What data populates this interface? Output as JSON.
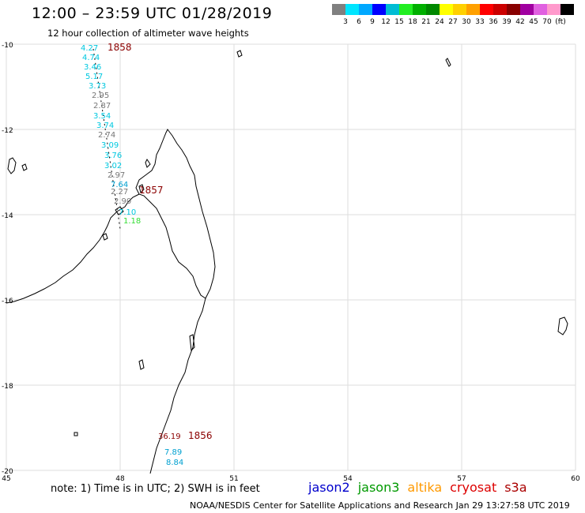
{
  "title": "12:00 – 23:59 UTC 01/28/2019",
  "subtitle": "12 hour collection of altimeter wave heights",
  "color_scale": {
    "colors": [
      "#808080",
      "#00e5ff",
      "#00a8ff",
      "#0000ff",
      "#00bcd4",
      "#22ee22",
      "#00b000",
      "#008800",
      "#ffff00",
      "#ffd000",
      "#ffa000",
      "#ff0000",
      "#cc0000",
      "#880000",
      "#a000a0",
      "#e060e0",
      "#ff99cc",
      "#000000"
    ],
    "labels": [
      "3",
      "6",
      "9",
      "12",
      "15",
      "18",
      "21",
      "24",
      "27",
      "30",
      "33",
      "36",
      "39",
      "42",
      "45",
      "70",
      "(ft)"
    ]
  },
  "axes": {
    "lat_labels": [
      "-10",
      "-12",
      "-14",
      "-16",
      "-18",
      "-20"
    ],
    "lon_labels": [
      "45",
      "48",
      "51",
      "54",
      "57",
      "60"
    ]
  },
  "passes": [
    {
      "time": "1858",
      "color": "#8b0000"
    },
    {
      "time": "1857",
      "color": "#8b0000"
    },
    {
      "time": "1856",
      "color": "#8b0000"
    }
  ],
  "wave_values": [
    {
      "text": "4.27",
      "color": "#00c8e0"
    },
    {
      "text": "4.74",
      "color": "#00c8e0"
    },
    {
      "text": "3.46",
      "color": "#00c8e0"
    },
    {
      "text": "5.17",
      "color": "#00c8e0"
    },
    {
      "text": "3.73",
      "color": "#00c8e0"
    },
    {
      "text": "2.95",
      "color": "#777777"
    },
    {
      "text": "2.87",
      "color": "#777777"
    },
    {
      "text": "3.54",
      "color": "#00c8e0"
    },
    {
      "text": "3.74",
      "color": "#00c8e0"
    },
    {
      "text": "2.74",
      "color": "#777777"
    },
    {
      "text": "3.09",
      "color": "#00c8e0"
    },
    {
      "text": "3.76",
      "color": "#00c8e0"
    },
    {
      "text": "3.02",
      "color": "#00c8e0"
    },
    {
      "text": "2.97",
      "color": "#777777"
    },
    {
      "text": "7.64",
      "color": "#00a0d0"
    },
    {
      "text": "2.27",
      "color": "#777777"
    },
    {
      "text": "2.90",
      "color": "#777777"
    },
    {
      "text": "7.10",
      "color": "#00c8e0"
    },
    {
      "text": "1.18",
      "color": "#33dd33"
    },
    {
      "text": "36.19",
      "color": "#8b0000"
    },
    {
      "text": "7.89",
      "color": "#00a0d0"
    },
    {
      "text": "8.84",
      "color": "#00a0d0"
    }
  ],
  "note": "note:  1) Time is in UTC;  2) SWH is in feet",
  "satellites": [
    {
      "name": "jason2",
      "color": "#0000cc"
    },
    {
      "name": "jason3",
      "color": "#009900"
    },
    {
      "name": "altika",
      "color": "#ff9900"
    },
    {
      "name": "cryosat",
      "color": "#dd0000"
    },
    {
      "name": "s3a",
      "color": "#aa0000"
    }
  ],
  "credit": "NOAA/NESDIS Center for Satellite Applications and Research    Jan 29 13:27:58 UTC 2019"
}
